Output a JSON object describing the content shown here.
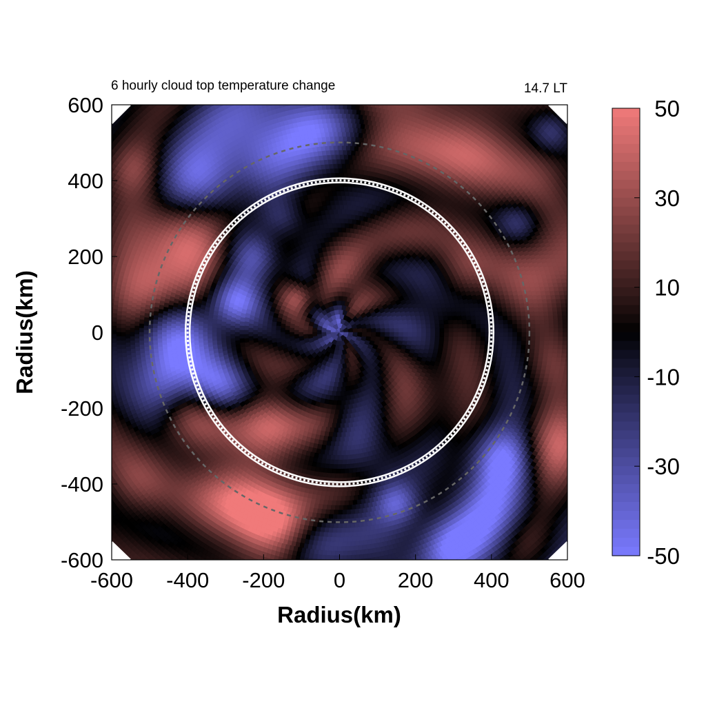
{
  "chart_data": {
    "type": "heatmap",
    "title": "6 hourly cloud top temperature change",
    "time_label": "14.7 LT",
    "xlabel": "Radius(km)",
    "ylabel": "Radius(km)",
    "xlim": [
      -600,
      600
    ],
    "ylim": [
      -600,
      600
    ],
    "x_ticks": [
      "-600",
      "-400",
      "-200",
      "0",
      "200",
      "400",
      "600"
    ],
    "y_ticks": [
      "600",
      "400",
      "200",
      "0",
      "-200",
      "-400",
      "-600"
    ],
    "colorbar": {
      "range": [
        -50,
        50
      ],
      "ticks": [
        "50",
        "30",
        "10",
        "-10",
        "-30",
        "-50"
      ],
      "low_color": "#7a7aff",
      "mid_color": "#000000",
      "high_color": "#f07a7a"
    },
    "reference_circles_km": {
      "solid_white_dotted": 400,
      "dashed_gray": 500
    },
    "field_blobs": [
      {
        "x": -440,
        "y": 250,
        "r": 90,
        "v": 40
      },
      {
        "x": -480,
        "y": 100,
        "r": 70,
        "v": 35
      },
      {
        "x": -450,
        "y": -20,
        "r": 80,
        "v": -45
      },
      {
        "x": -460,
        "y": -140,
        "r": 60,
        "v": -35
      },
      {
        "x": -360,
        "y": 380,
        "r": 70,
        "v": -40
      },
      {
        "x": -220,
        "y": 520,
        "r": 110,
        "v": -40
      },
      {
        "x": -60,
        "y": 560,
        "r": 70,
        "v": -30
      },
      {
        "x": 150,
        "y": 570,
        "r": 90,
        "v": 25
      },
      {
        "x": 360,
        "y": 500,
        "r": 100,
        "v": 30
      },
      {
        "x": 540,
        "y": 440,
        "r": 70,
        "v": 20
      },
      {
        "x": 560,
        "y": 170,
        "r": 80,
        "v": 40
      },
      {
        "x": 560,
        "y": -80,
        "r": 60,
        "v": 15
      },
      {
        "x": 570,
        "y": -300,
        "r": 70,
        "v": 30
      },
      {
        "x": 430,
        "y": -330,
        "r": 60,
        "v": -45
      },
      {
        "x": 400,
        "y": -480,
        "r": 80,
        "v": -50
      },
      {
        "x": 290,
        "y": -560,
        "r": 60,
        "v": -40
      },
      {
        "x": 480,
        "y": -540,
        "r": 60,
        "v": 20
      },
      {
        "x": 120,
        "y": -560,
        "r": 70,
        "v": -20
      },
      {
        "x": -60,
        "y": -560,
        "r": 70,
        "v": -15
      },
      {
        "x": -270,
        "y": -430,
        "r": 90,
        "v": 45
      },
      {
        "x": -170,
        "y": -530,
        "r": 70,
        "v": 45
      },
      {
        "x": -380,
        "y": -230,
        "r": 70,
        "v": 35
      },
      {
        "x": -320,
        "y": -150,
        "r": 55,
        "v": -40
      },
      {
        "x": -280,
        "y": 80,
        "r": 45,
        "v": -40
      },
      {
        "x": -220,
        "y": 200,
        "r": 45,
        "v": -30
      },
      {
        "x": -150,
        "y": 300,
        "r": 40,
        "v": -25
      },
      {
        "x": -180,
        "y": -230,
        "r": 60,
        "v": 25
      },
      {
        "x": -110,
        "y": 90,
        "r": 30,
        "v": 35
      },
      {
        "x": 20,
        "y": 140,
        "r": 55,
        "v": 20
      },
      {
        "x": 180,
        "y": 280,
        "r": 80,
        "v": 15
      },
      {
        "x": 250,
        "y": 50,
        "r": 70,
        "v": -15
      },
      {
        "x": 250,
        "y": -200,
        "r": 90,
        "v": 15
      },
      {
        "x": 0,
        "y": -150,
        "r": 70,
        "v": -10
      },
      {
        "x": -20,
        "y": 20,
        "r": 30,
        "v": -35
      },
      {
        "x": 80,
        "y": -330,
        "r": 60,
        "v": -15
      },
      {
        "x": -50,
        "y": -250,
        "r": 50,
        "v": 15
      },
      {
        "x": 320,
        "y": 150,
        "r": 50,
        "v": 20
      },
      {
        "x": -250,
        "y": 350,
        "r": 60,
        "v": 15
      },
      {
        "x": -540,
        "y": 430,
        "r": 50,
        "v": 20
      },
      {
        "x": -540,
        "y": -400,
        "r": 60,
        "v": 15
      },
      {
        "x": 560,
        "y": 530,
        "r": 40,
        "v": -25
      },
      {
        "x": 470,
        "y": 290,
        "r": 40,
        "v": -20
      },
      {
        "x": 150,
        "y": -450,
        "r": 40,
        "v": -30
      }
    ]
  }
}
